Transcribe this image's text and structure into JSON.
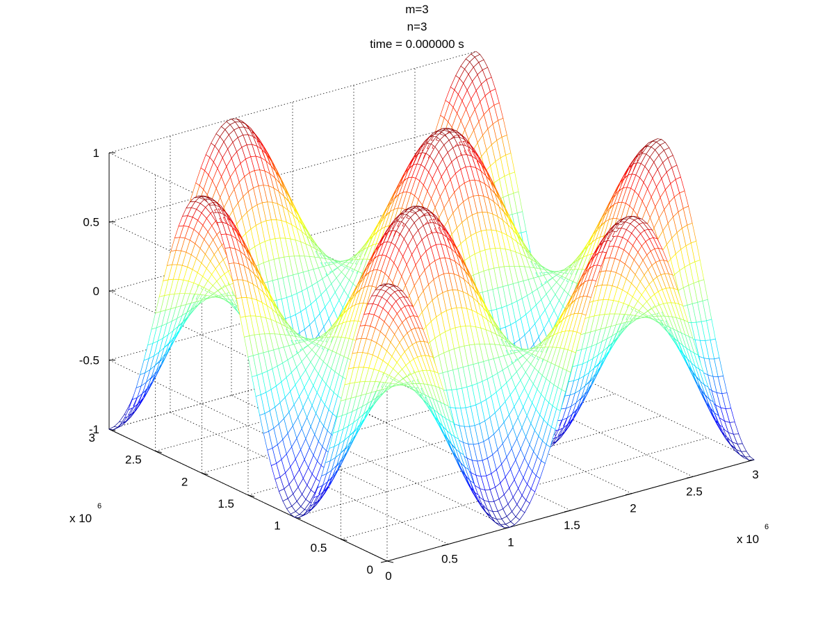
{
  "chart_data": {
    "type": "surface",
    "title_lines": [
      "m=3",
      "n=3",
      "time = 0.000000 s"
    ],
    "m": 3,
    "n": 3,
    "time_s": 0.0,
    "function": "z = cos(m*pi*x/L) * cos(n*pi*y/L)",
    "x": {
      "range": [
        0,
        3000000
      ],
      "ticks": [
        0,
        0.5,
        1,
        1.5,
        2,
        2.5,
        3
      ],
      "tick_labels": [
        "0",
        "0.5",
        "1",
        "1.5",
        "2",
        "2.5",
        "3"
      ],
      "multiplier_text": "x 10",
      "multiplier_exp": "6"
    },
    "y": {
      "range": [
        0,
        3000000
      ],
      "ticks": [
        0,
        0.5,
        1,
        1.5,
        2,
        2.5,
        3
      ],
      "tick_labels": [
        "0",
        "0.5",
        "1",
        "1.5",
        "2",
        "2.5",
        "3"
      ],
      "multiplier_text": "x 10",
      "multiplier_exp": "6"
    },
    "z": {
      "range": [
        -1,
        1
      ],
      "ticks": [
        -1,
        -0.5,
        0,
        0.5,
        1
      ],
      "tick_labels": [
        "-1",
        "-0.5",
        "0",
        "0.5",
        "1"
      ]
    },
    "grid": true,
    "colormap": "jet",
    "style": "mesh"
  }
}
